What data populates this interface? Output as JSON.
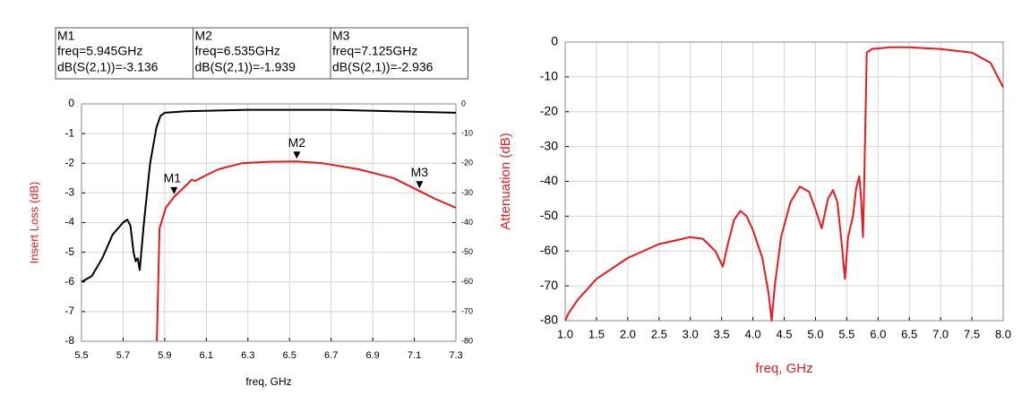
{
  "chart_data": [
    {
      "type": "line",
      "xlabel": "freq, GHz",
      "ylabel": "Insert Loss (dB)",
      "xlim": [
        5.5,
        7.3
      ],
      "xticks": [
        5.5,
        5.7,
        5.9,
        6.1,
        6.3,
        6.5,
        6.7,
        6.9,
        7.1,
        7.3
      ],
      "ylim": [
        -8,
        0
      ],
      "yticks": [
        0,
        -1,
        -2,
        -3,
        -4,
        -5,
        -6,
        -7,
        -8
      ],
      "y2lim": [
        -80,
        0
      ],
      "y2ticks": [
        0,
        -10,
        -20,
        -30,
        -40,
        -50,
        -60,
        -70,
        -80
      ],
      "grid": true,
      "series": [
        {
          "color": "#000000",
          "axis": "y2",
          "x": [
            5.5,
            5.55,
            5.6,
            5.65,
            5.7,
            5.72,
            5.735,
            5.75,
            5.76,
            5.77,
            5.78,
            5.8,
            5.83,
            5.86,
            5.88,
            5.9,
            6.0,
            6.3,
            6.7,
            7.0,
            7.3
          ],
          "values": [
            -60,
            -58,
            -52,
            -44,
            -40,
            -39,
            -41,
            -50,
            -53,
            -52,
            -56,
            -40,
            -20,
            -8,
            -4,
            -3,
            -2.5,
            -2,
            -2,
            -2.5,
            -3
          ]
        },
        {
          "color": "#e8191f",
          "x": [
            5.862,
            5.875,
            5.905,
            5.945,
            6.01,
            6.03,
            6.045,
            6.1,
            6.16,
            6.27,
            6.4,
            6.535,
            6.66,
            6.83,
            7.0,
            7.125,
            7.2,
            7.3
          ],
          "values": [
            -8,
            -4.2,
            -3.5,
            -3.136,
            -2.7,
            -2.55,
            -2.6,
            -2.4,
            -2.2,
            -2.0,
            -1.95,
            -1.939,
            -2.0,
            -2.2,
            -2.5,
            -2.936,
            -3.2,
            -3.5
          ]
        }
      ],
      "markers": [
        {
          "label": "M1",
          "x": 5.945,
          "y": -3.136,
          "freq_text": "freq=5.945GHz",
          "value_text": "dB(S(2,1))=-3.136"
        },
        {
          "label": "M2",
          "x": 6.535,
          "y": -1.939,
          "freq_text": "freq=6.535GHz",
          "value_text": "dB(S(2,1))=-1.939"
        },
        {
          "label": "M3",
          "x": 7.125,
          "y": -2.936,
          "freq_text": "freq=7.125GHz",
          "value_text": "dB(S(2,1))=-2.936"
        }
      ]
    },
    {
      "type": "line",
      "xlabel": "freq, GHz",
      "ylabel": "Attenuation (dB)",
      "xlim": [
        1.0,
        8.0
      ],
      "xticks": [
        {
          "value": 1,
          "label": "1.0"
        },
        1.5,
        {
          "value": 2,
          "label": "2.0"
        },
        2.5,
        {
          "value": 3,
          "label": "3.0"
        },
        3.5,
        {
          "value": 4,
          "label": "4.0"
        },
        4.5,
        {
          "value": 5,
          "label": "5.0"
        },
        5.5,
        {
          "value": 6,
          "label": "6.0"
        },
        6.5,
        {
          "value": 7,
          "label": "7.0"
        },
        7.5,
        {
          "value": 8,
          "label": "8.0"
        }
      ],
      "ylim": [
        -80,
        0
      ],
      "yticks": [
        0,
        -10,
        -20,
        -30,
        -40,
        -50,
        -60,
        -70,
        -80
      ],
      "grid": true,
      "series": [
        {
          "color": "#e8191f",
          "x": [
            1.0,
            1.05,
            1.2,
            1.5,
            2.0,
            2.5,
            3.0,
            3.2,
            3.4,
            3.52,
            3.6,
            3.7,
            3.8,
            3.9,
            4.0,
            4.15,
            4.25,
            4.3,
            4.35,
            4.45,
            4.6,
            4.75,
            4.9,
            5.0,
            5.1,
            5.2,
            5.28,
            5.35,
            5.42,
            5.47,
            5.52,
            5.6,
            5.65,
            5.7,
            5.73,
            5.76,
            5.78,
            5.82,
            5.9,
            6.2,
            6.5,
            7.0,
            7.5,
            7.8,
            8.0
          ],
          "values": [
            -80,
            -78,
            -74,
            -68,
            -62,
            -58,
            -56,
            -56.5,
            -60,
            -64.5,
            -58,
            -51,
            -48.5,
            -50,
            -54,
            -62,
            -72,
            -80,
            -70,
            -56,
            -46,
            -41.5,
            -43,
            -48,
            -53.5,
            -45,
            -42.5,
            -46,
            -58,
            -68,
            -56,
            -50,
            -42,
            -38.5,
            -45,
            -56,
            -40,
            -3,
            -2,
            -1.5,
            -1.5,
            -2,
            -3,
            -6,
            -13
          ]
        }
      ]
    }
  ]
}
